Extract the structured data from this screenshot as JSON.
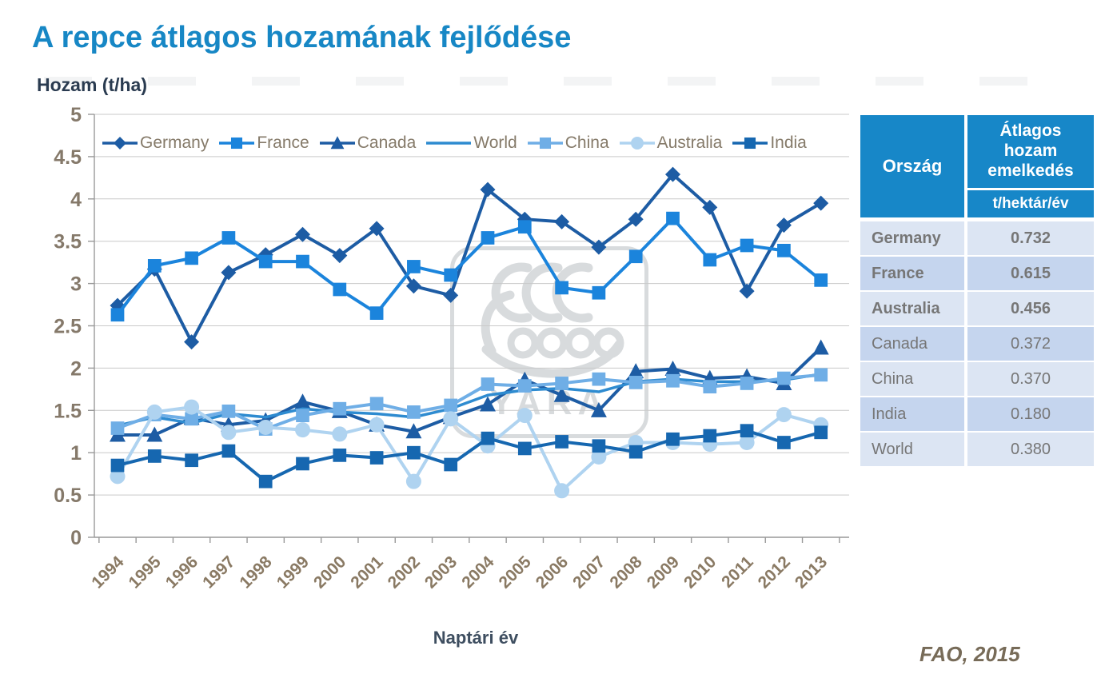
{
  "title": "A repce átlagos hozamának fejlődése",
  "y_axis_label": "Hozam (t/ha)",
  "x_axis_label": "Naptári év",
  "source": "FAO, 2015",
  "watermark": "YARA",
  "colors": {
    "title": "#1787C5",
    "axis_text": "#85796A",
    "xtick": "#8A7A64",
    "header_bg": "#1787C8",
    "row_light": "#DCE5F3",
    "row_dark": "#C5D5EE",
    "table_text": "#767676",
    "grid": "#C9C9C9",
    "axis_line": "#999999",
    "watermark": "#B9BEC3"
  },
  "chart_data": {
    "type": "line",
    "x": [
      1994,
      1995,
      1996,
      1997,
      1998,
      1999,
      2000,
      2001,
      2002,
      2003,
      2004,
      2005,
      2006,
      2007,
      2008,
      2009,
      2010,
      2011,
      2012,
      2013
    ],
    "ylim": [
      0,
      5
    ],
    "ytick_step": 0.5,
    "grid": "horizontal",
    "legend_position": "top",
    "series": [
      {
        "name": "Germany",
        "marker": "diamond",
        "color": "#1D5CA4",
        "values": [
          2.74,
          3.17,
          2.31,
          3.13,
          3.34,
          3.58,
          3.33,
          3.65,
          2.97,
          2.86,
          4.11,
          3.76,
          3.73,
          3.43,
          3.76,
          4.29,
          3.9,
          2.91,
          3.69,
          3.95
        ]
      },
      {
        "name": "France",
        "marker": "square",
        "color": "#1B84DC",
        "values": [
          2.63,
          3.21,
          3.3,
          3.54,
          3.26,
          3.26,
          2.93,
          2.65,
          3.2,
          3.1,
          3.54,
          3.67,
          2.95,
          2.89,
          3.32,
          3.77,
          3.28,
          3.45,
          3.39,
          3.04
        ]
      },
      {
        "name": "Canada",
        "marker": "triangle",
        "color": "#1D5CA4",
        "values": [
          1.21,
          1.21,
          1.41,
          1.33,
          1.38,
          1.6,
          1.49,
          1.33,
          1.25,
          1.42,
          1.57,
          1.86,
          1.68,
          1.5,
          1.96,
          1.99,
          1.88,
          1.9,
          1.82,
          2.24
        ]
      },
      {
        "name": "World",
        "marker": "none",
        "color": "#2E8BD0",
        "values": [
          1.32,
          1.42,
          1.35,
          1.46,
          1.42,
          1.52,
          1.48,
          1.46,
          1.42,
          1.52,
          1.68,
          1.74,
          1.76,
          1.72,
          1.84,
          1.87,
          1.84,
          1.84,
          1.86,
          1.93
        ]
      },
      {
        "name": "China",
        "marker": "square",
        "color": "#6FAEE6",
        "values": [
          1.29,
          1.45,
          1.4,
          1.49,
          1.28,
          1.44,
          1.52,
          1.58,
          1.48,
          1.56,
          1.81,
          1.79,
          1.82,
          1.87,
          1.83,
          1.85,
          1.78,
          1.82,
          1.88,
          1.92
        ]
      },
      {
        "name": "Australia",
        "marker": "circle",
        "color": "#AFD3F0",
        "values": [
          0.72,
          1.48,
          1.54,
          1.24,
          1.3,
          1.27,
          1.22,
          1.33,
          0.66,
          1.4,
          1.08,
          1.44,
          0.55,
          0.95,
          1.12,
          1.12,
          1.1,
          1.12,
          1.45,
          1.33
        ]
      },
      {
        "name": "India",
        "marker": "square",
        "color": "#1667B0",
        "values": [
          0.85,
          0.96,
          0.91,
          1.02,
          0.66,
          0.87,
          0.97,
          0.94,
          1.0,
          0.86,
          1.17,
          1.05,
          1.13,
          1.08,
          1.01,
          1.16,
          1.2,
          1.26,
          1.12,
          1.24
        ]
      }
    ]
  },
  "table": {
    "header": {
      "col1": "Ország",
      "col2": "Átlagos hozam emelkedés",
      "col2_sub": "t/hektár/év"
    },
    "rows": [
      {
        "country": "Germany",
        "value": "0.732",
        "bold": true
      },
      {
        "country": "France",
        "value": "0.615",
        "bold": true
      },
      {
        "country": "Australia",
        "value": "0.456",
        "bold": true
      },
      {
        "country": "Canada",
        "value": "0.372",
        "bold": false
      },
      {
        "country": "China",
        "value": "0.370",
        "bold": false
      },
      {
        "country": "India",
        "value": "0.180",
        "bold": false
      },
      {
        "country": "World",
        "value": "0.380",
        "bold": false
      }
    ]
  }
}
